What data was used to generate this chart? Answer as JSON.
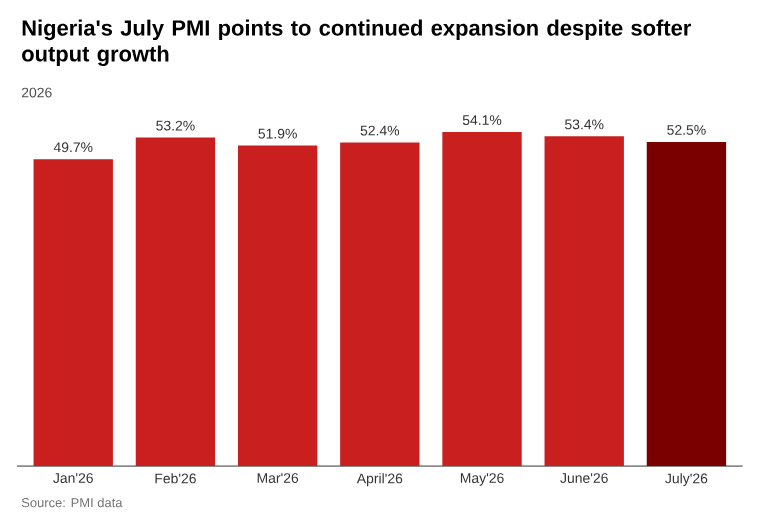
{
  "chart_data": {
    "type": "bar",
    "title": "Nigeria's July PMI points to continued expansion despite softer output growth",
    "subtitle": "2026",
    "categories": [
      "Jan'26",
      "Feb'26",
      "Mar'26",
      "April'26",
      "May'26",
      "June'26",
      "July'26"
    ],
    "values": [
      49.7,
      53.2,
      51.9,
      52.4,
      54.1,
      53.4,
      52.5
    ],
    "colors": [
      "#c91f1f",
      "#c91f1f",
      "#c91f1f",
      "#c91f1f",
      "#c91f1f",
      "#c91f1f",
      "#7a0000"
    ],
    "value_labels": [
      "49.7%",
      "53.2%",
      "51.9%",
      "52.4%",
      "54.1%",
      "53.4%",
      "52.5%"
    ],
    "tick_labels": "x",
    "annotations": [
      "Source: PMI data"
    ]
  }
}
